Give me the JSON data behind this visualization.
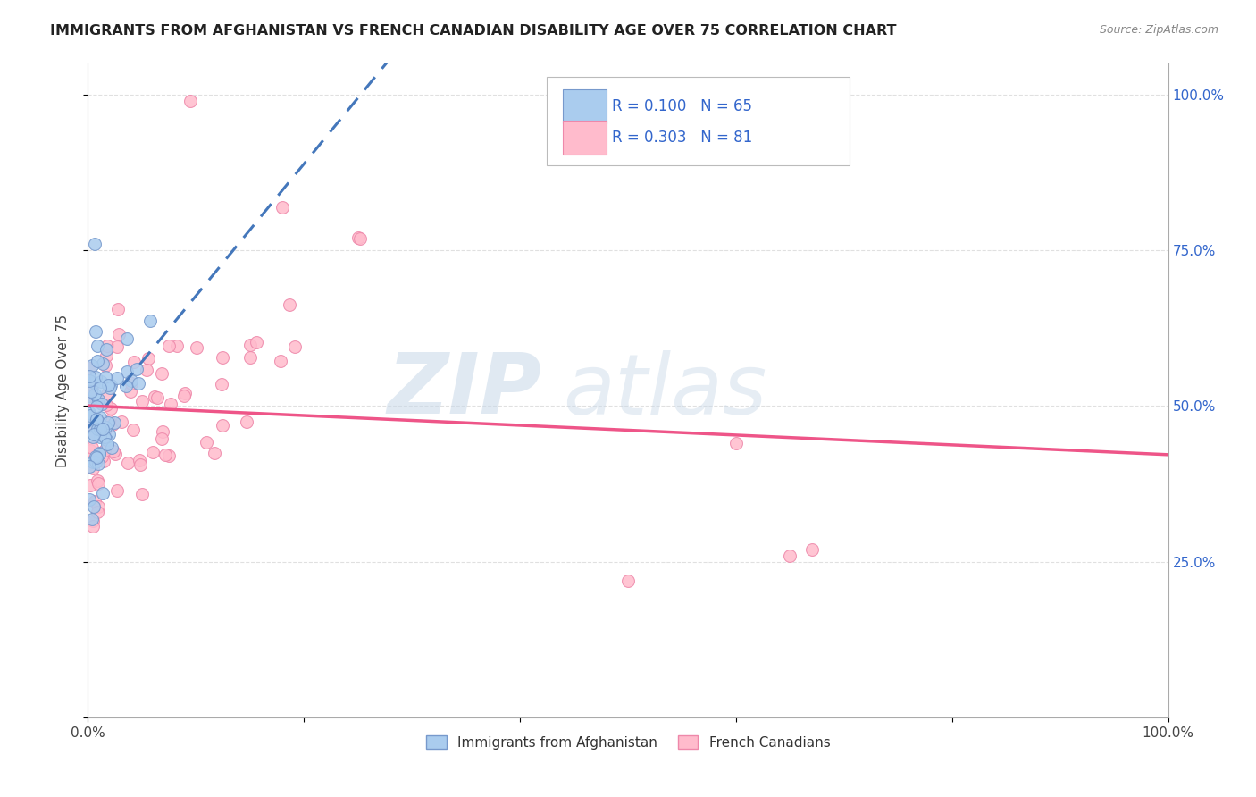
{
  "title": "IMMIGRANTS FROM AFGHANISTAN VS FRENCH CANADIAN DISABILITY AGE OVER 75 CORRELATION CHART",
  "source": "Source: ZipAtlas.com",
  "ylabel": "Disability Age Over 75",
  "r_blue": 0.1,
  "n_blue": 65,
  "r_pink": 0.303,
  "n_pink": 81,
  "legend_label_blue": "Immigrants from Afghanistan",
  "legend_label_pink": "French Canadians",
  "ytick_labels": [
    "",
    "25.0%",
    "50.0%",
    "75.0%",
    "100.0%"
  ],
  "ytick_values": [
    0.0,
    0.25,
    0.5,
    0.75,
    1.0
  ],
  "blue_line_color": "#4477BB",
  "pink_line_color": "#EE5588",
  "blue_dot_facecolor": "#AACCEE",
  "blue_dot_edgecolor": "#7799CC",
  "pink_dot_facecolor": "#FFBBCC",
  "pink_dot_edgecolor": "#EE88AA",
  "watermark_zip_color": "#CCDDEE",
  "watermark_atlas_color": "#BBCCDD",
  "background_color": "#FFFFFF",
  "grid_color": "#DDDDDD",
  "right_axis_color": "#3366CC",
  "title_color": "#222222",
  "source_color": "#888888"
}
